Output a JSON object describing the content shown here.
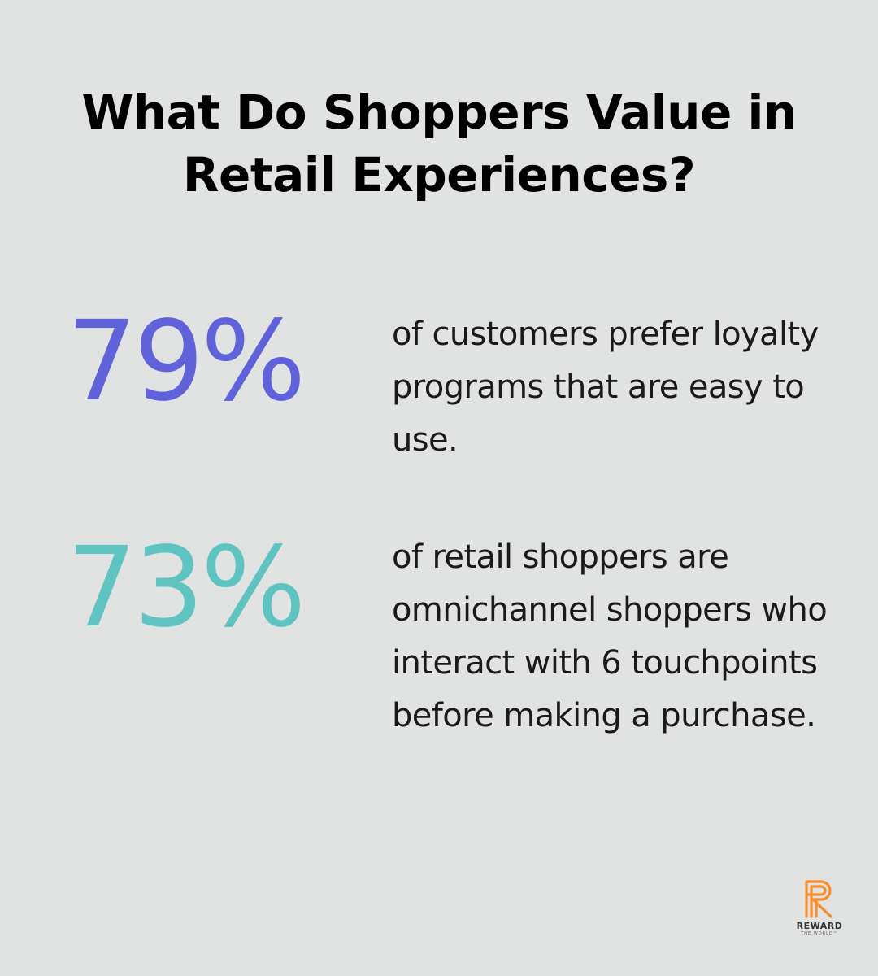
{
  "title": "What Do Shoppers Value in Retail Experiences?",
  "colors": {
    "background": "#e1e3e3",
    "stat_1": "#5f62d8",
    "stat_2": "#5ec3c1",
    "logo": "#f78d2c"
  },
  "stats": [
    {
      "value": "79%",
      "description": "of customers prefer loyalty programs that are easy to use."
    },
    {
      "value": "73%",
      "description": "of retail shoppers are omnichannel shoppers who interact with 6 touchpoints before making a purchase."
    }
  ],
  "logo": {
    "icon": "reward-r-logo-icon",
    "wordmark": "REWARD",
    "tagline": "THE WORLD™"
  }
}
